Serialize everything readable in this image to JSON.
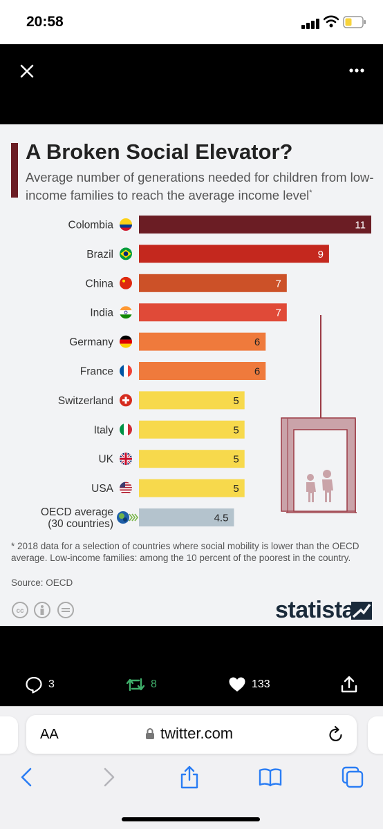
{
  "status_bar": {
    "time": "20:58"
  },
  "infographic": {
    "title": "A Broken Social Elevator?",
    "subtitle": "Average number of generations needed for children from low-income families to reach the average income level",
    "subtitle_mark": "*",
    "footnote": "* 2018 data for a selection of countries where social mobility is lower than the OECD average. Low-income families: among the 10 percent of the poorest in the country.",
    "source": "Source: OECD",
    "brand": "statista",
    "accent_color": "#6b1d24"
  },
  "chart_data": {
    "type": "bar",
    "orientation": "horizontal",
    "title": "A Broken Social Elevator?",
    "subtitle": "Average number of generations needed for children from low-income families to reach the average income level*",
    "categories": [
      "Colombia",
      "Brazil",
      "China",
      "India",
      "Germany",
      "France",
      "Switzerland",
      "Italy",
      "UK",
      "USA",
      "OECD average (30 countries)"
    ],
    "values": [
      11,
      9,
      7,
      7,
      6,
      6,
      5,
      5,
      5,
      5,
      4.5
    ],
    "value_labels": [
      "11",
      "9",
      "7",
      "7",
      "6",
      "6",
      "5",
      "5",
      "5",
      "5",
      "4.5"
    ],
    "bar_colors": [
      "#6b1d24",
      "#c4281e",
      "#cc5128",
      "#e04a38",
      "#ef7a3c",
      "#ef7a3c",
      "#f7d94c",
      "#f7d94c",
      "#f7d94c",
      "#f7d94c",
      "#b4c3cd"
    ],
    "label_colors": [
      "#ffffff",
      "#ffffff",
      "#ffffff",
      "#ffffff",
      "#222222",
      "#222222",
      "#222222",
      "#222222",
      "#222222",
      "#222222",
      "#222222"
    ],
    "flags": [
      "colombia-flag-icon",
      "brazil-flag-icon",
      "china-flag-icon",
      "india-flag-icon",
      "germany-flag-icon",
      "france-flag-icon",
      "switzerland-flag-icon",
      "italy-flag-icon",
      "uk-flag-icon",
      "usa-flag-icon",
      "oecd-logo-icon"
    ],
    "xlim": [
      0,
      11
    ],
    "xlabel": "",
    "ylabel": "",
    "grid": false,
    "legend": "none"
  },
  "tweet_actions": {
    "replies": "3",
    "retweets": "8",
    "likes": "133",
    "retweet_color": "#3fae6a"
  },
  "safari": {
    "text_size_label": "AA",
    "url": "twitter.com"
  }
}
